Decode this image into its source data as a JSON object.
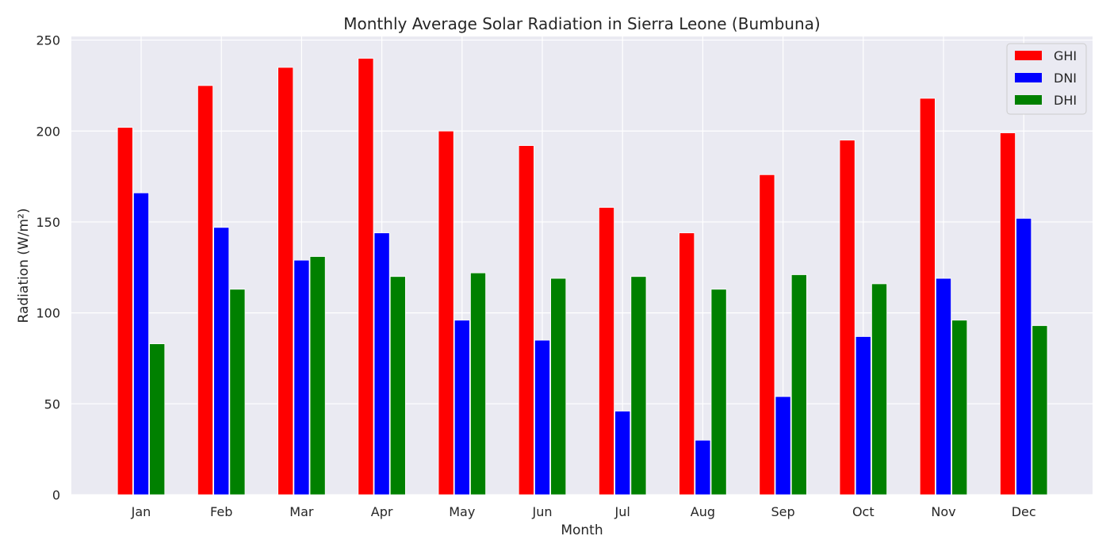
{
  "chart_data": {
    "type": "bar",
    "title": "Monthly Average Solar Radiation in Sierra Leone (Bumbuna)",
    "xlabel": "Month",
    "ylabel": "Radiation (W/m²)",
    "ylim": [
      0,
      252
    ],
    "yticks": [
      0,
      50,
      100,
      150,
      200,
      250
    ],
    "grid": true,
    "legend_position": "top-right",
    "categories": [
      "Jan",
      "Feb",
      "Mar",
      "Apr",
      "May",
      "Jun",
      "Jul",
      "Aug",
      "Sep",
      "Oct",
      "Nov",
      "Dec"
    ],
    "series": [
      {
        "name": "GHI",
        "color": "#ff0000",
        "values": [
          202,
          225,
          235,
          240,
          200,
          192,
          158,
          144,
          176,
          195,
          218,
          199
        ]
      },
      {
        "name": "DNI",
        "color": "#0000ff",
        "values": [
          166,
          147,
          129,
          144,
          96,
          85,
          46,
          30,
          54,
          87,
          119,
          152
        ]
      },
      {
        "name": "DHI",
        "color": "#008000",
        "values": [
          83,
          113,
          131,
          120,
          122,
          119,
          120,
          113,
          121,
          116,
          96,
          93
        ]
      }
    ]
  }
}
